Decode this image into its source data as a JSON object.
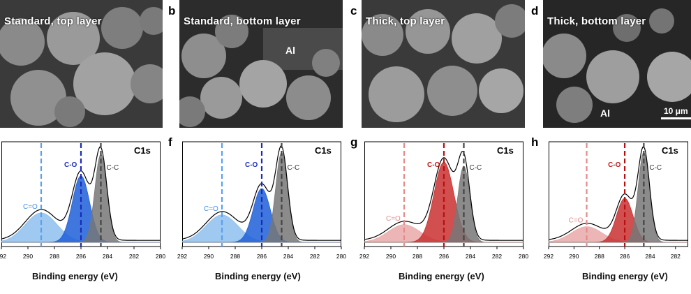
{
  "figure": {
    "scale_bar": "10 μm",
    "panels_sem": [
      {
        "letter": "",
        "caption": "Standard, top layer",
        "al_label": ""
      },
      {
        "letter": "b",
        "caption": "Standard, bottom layer",
        "al_label": "Al"
      },
      {
        "letter": "c",
        "caption": "Thick, top layer",
        "al_label": ""
      },
      {
        "letter": "d",
        "caption": "Thick, bottom layer",
        "al_label": "Al"
      }
    ]
  },
  "chart_data": [
    {
      "type": "line",
      "letter": "",
      "title": "C1s",
      "xlabel": "Binding energy (eV)",
      "x_ticks": [
        292,
        290,
        288,
        286,
        284,
        282,
        280
      ],
      "xlim": [
        292,
        280
      ],
      "reversed_x": true,
      "peak_lines": [
        {
          "label": "C=O",
          "x": 289.0
        },
        {
          "label": "C-O",
          "x": 286.0
        },
        {
          "label": "C-C",
          "x": 284.5
        }
      ],
      "series": [
        {
          "name": "C=O",
          "center": 289.0,
          "height": 0.3,
          "sigma": 1.2,
          "color": "#8ec0ef"
        },
        {
          "name": "C-O",
          "center": 286.0,
          "height": 0.68,
          "sigma": 0.65,
          "color": "#1f5fd8"
        },
        {
          "name": "C-C",
          "center": 284.5,
          "height": 0.9,
          "sigma": 0.45,
          "color": "#777777"
        }
      ],
      "colors": {
        "co_label": "#1c2fbf",
        "coo_label": "#4a8fe8",
        "dash1": "#5aa0f0",
        "dash2": "#1a2ab8"
      }
    },
    {
      "type": "line",
      "letter": "f",
      "title": "C1s",
      "xlabel": "Binding energy (eV)",
      "x_ticks": [
        292,
        290,
        288,
        286,
        284,
        282,
        280
      ],
      "xlim": [
        292,
        280
      ],
      "reversed_x": true,
      "peak_lines": [
        {
          "label": "C=O",
          "x": 289.0
        },
        {
          "label": "C-O",
          "x": 286.0
        },
        {
          "label": "C-C",
          "x": 284.5
        }
      ],
      "series": [
        {
          "name": "C=O",
          "center": 289.0,
          "height": 0.28,
          "sigma": 1.2,
          "color": "#8ec0ef"
        },
        {
          "name": "C-O",
          "center": 286.0,
          "height": 0.55,
          "sigma": 0.65,
          "color": "#1f5fd8"
        },
        {
          "name": "C-C",
          "center": 284.5,
          "height": 0.92,
          "sigma": 0.45,
          "color": "#777777"
        }
      ],
      "colors": {
        "co_label": "#1c2fbf",
        "coo_label": "#4a8fe8",
        "dash1": "#5aa0f0",
        "dash2": "#1a2ab8"
      }
    },
    {
      "type": "line",
      "letter": "g",
      "title": "C1s",
      "xlabel": "Binding energy (eV)",
      "x_ticks": [
        292,
        290,
        288,
        286,
        284,
        282,
        280
      ],
      "xlim": [
        292,
        280
      ],
      "reversed_x": true,
      "peak_lines": [
        {
          "label": "C=O",
          "x": 289.0
        },
        {
          "label": "C-O",
          "x": 286.0
        },
        {
          "label": "C-C",
          "x": 284.5
        }
      ],
      "series": [
        {
          "name": "C=O",
          "center": 289.0,
          "height": 0.18,
          "sigma": 1.2,
          "color": "#eaa9a9"
        },
        {
          "name": "C-O",
          "center": 286.0,
          "height": 0.82,
          "sigma": 0.75,
          "color": "#c93030"
        },
        {
          "name": "C-C",
          "center": 284.5,
          "height": 0.78,
          "sigma": 0.45,
          "color": "#777777"
        }
      ],
      "colors": {
        "co_label": "#c01818",
        "coo_label": "#e38b8b",
        "dash1": "#e38b8b",
        "dash2": "#b81010"
      }
    },
    {
      "type": "line",
      "letter": "h",
      "title": "C1s",
      "xlabel": "Binding energy (eV)",
      "x_ticks": [
        292,
        290,
        288,
        286,
        284,
        282
      ],
      "xlim": [
        292,
        281
      ],
      "reversed_x": true,
      "peak_lines": [
        {
          "label": "C=O",
          "x": 289.0
        },
        {
          "label": "C-O",
          "x": 286.0
        },
        {
          "label": "C-C",
          "x": 284.5
        }
      ],
      "series": [
        {
          "name": "C=O",
          "center": 289.0,
          "height": 0.16,
          "sigma": 1.2,
          "color": "#eaa9a9"
        },
        {
          "name": "C-O",
          "center": 286.0,
          "height": 0.45,
          "sigma": 0.65,
          "color": "#c93030"
        },
        {
          "name": "C-C",
          "center": 284.5,
          "height": 0.92,
          "sigma": 0.45,
          "color": "#777777"
        }
      ],
      "colors": {
        "co_label": "#c01818",
        "coo_label": "#e38b8b",
        "dash1": "#e38b8b",
        "dash2": "#b81010"
      }
    }
  ]
}
